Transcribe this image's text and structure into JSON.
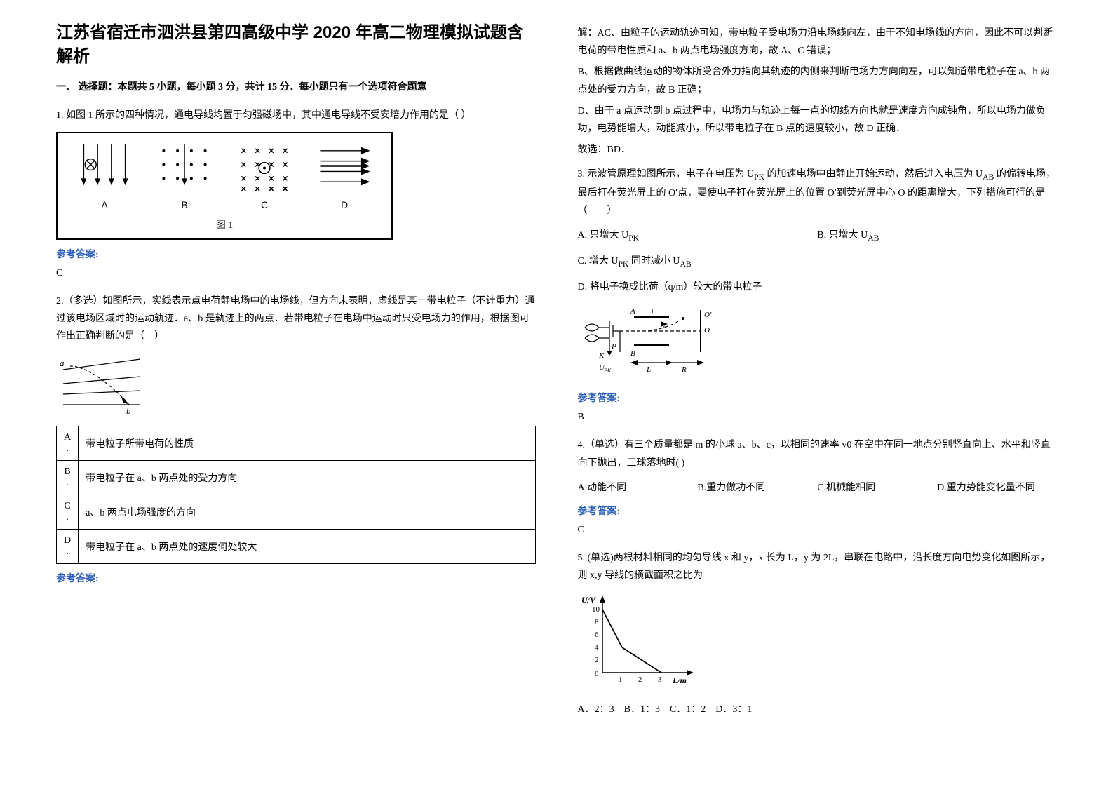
{
  "title": "江苏省宿迁市泗洪县第四高级中学 2020 年高二物理模拟试题含解析",
  "section1_header": "一、 选择题：本题共 5 小题，每小题 3 分，共计 15 分．每小题只有一个选项符合题意",
  "q1_text": "1. 如图 1 所示的四种情况，通电导线均置于匀强磁场中，其中通电导线不受安培力作用的是（ ）",
  "fig1": {
    "labels": [
      "A",
      "B",
      "C",
      "D"
    ],
    "caption": "图 1"
  },
  "answer_label": "参考答案:",
  "q1_answer": "C",
  "q2_text": "2.（多选）如图所示，实线表示点电荷静电场中的电场线，但方向未表明，虚线是某一带电粒子（不计重力）通过该电场区域时的运动轨迹．a、b 是轨迹上的两点．若带电粒子在电场中运动时只受电场力的作用，根据图可作出正确判断的是（　）",
  "q2_options": {
    "A": "带电粒子所带电荷的性质",
    "B": "带电粒子在 a、b 两点处的受力方向",
    "C": "a、b 两点电场强度的方向",
    "D": "带电粒子在 a、b 两点处的速度何处较大"
  },
  "q2_solution": {
    "line1": "解：AC、由粒子的运动轨迹可知，带电粒子受电场力沿电场线向左，由于不知电场线的方向，因此不可以判断电荷的带电性质和 a、b 两点电场强度方向，故 A、C 错误；",
    "line2": "B、根据做曲线运动的物体所受合外力指向其轨迹的内侧来判断电场力方向向左，可以知道带电粒子在 a、b 两点处的受力方向，故 B 正确；",
    "line3": "D、由于 a 点运动到 b 点过程中，电场力与轨迹上每一点的切线方向也就是速度方向成钝角，所以电场力做负功，电势能增大，动能减小，所以带电粒子在 B 点的速度较小，故 D 正确．",
    "conclusion": "故选：BD．"
  },
  "q3_text": "3. 示波管原理如图所示，电子在电压为 U<sub>PK</sub> 的加速电场中由静止开始运动，然后进入电压为 U<sub>AB</sub> 的偏转电场，最后打在荧光屏上的 O′点，要使电子打在荧光屏上的位置 O′到荧光屏中心 O 的距离增大，下列措施可行的是（　　）",
  "q3_options": {
    "A": "A. 只增大 U<sub>PK</sub>",
    "B": "B. 只增大 U<sub>AB</sub>",
    "C": "C. 增大 U<sub>PK</sub> 同时减小 U<sub>AB</sub>",
    "D": "D. 将电子换成比荷（q/m）较大的带电粒子"
  },
  "q3_answer": "B",
  "q4_text": "4.（单选）有三个质量都是 m 的小球 a、b、c，以相同的速率 v0 在空中在同一地点分别竖直向上、水平和竖直向下抛出，三球落地时(  )",
  "q4_options": {
    "A": "A.动能不同",
    "B": "B.重力做功不同",
    "C": "C.机械能相同",
    "D": "D.重力势能变化量不同"
  },
  "q4_answer": "C",
  "q5_text": "5. (单选)两根材料相同的均匀导线 x 和 y，x 长为 L，y 为 2L，串联在电路中，沿长度方向电势变化如图所示，则 x,y 导线的横截面积之比为",
  "q5_chart": {
    "type": "line",
    "xlabel": "L/m",
    "ylabel": "U/V",
    "xticks": [
      0,
      1,
      2,
      3
    ],
    "yticks": [
      0,
      2,
      4,
      6,
      8,
      10
    ],
    "xlim": [
      0,
      3.5
    ],
    "ylim": [
      0,
      11
    ],
    "line_color": "#000000",
    "background_color": "#ffffff",
    "points": [
      [
        0,
        10
      ],
      [
        1,
        4
      ],
      [
        3,
        0
      ]
    ]
  },
  "q5_options_line": "A．2：3　B．1：3　C．1：2　D．3：1"
}
